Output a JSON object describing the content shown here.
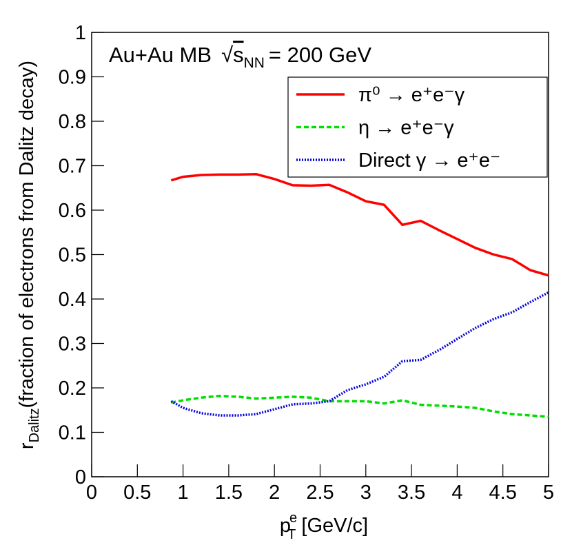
{
  "chart_data": {
    "type": "line",
    "annotation": [
      "Au+Au  MB",
      "s",
      "NN",
      "= 200 GeV"
    ],
    "ylabel": [
      "r",
      "Dalitz",
      "(fraction of electrons from Dalitz decay)"
    ],
    "xlabel": [
      "p",
      "e",
      "T",
      " [GeV/c]"
    ],
    "x": [
      0.87,
      1.0,
      1.2,
      1.4,
      1.6,
      1.8,
      2.0,
      2.2,
      2.4,
      2.6,
      2.8,
      3.0,
      3.2,
      3.4,
      3.6,
      3.8,
      4.0,
      4.2,
      4.4,
      4.6,
      4.8,
      5.0
    ],
    "series": [
      {
        "name": "π⁰ → e⁺e⁻γ",
        "color": "#ff0000",
        "dash": "solid",
        "values": [
          0.667,
          0.675,
          0.679,
          0.68,
          0.68,
          0.681,
          0.67,
          0.656,
          0.655,
          0.657,
          0.64,
          0.62,
          0.612,
          0.567,
          0.576,
          0.555,
          0.535,
          0.515,
          0.5,
          0.49,
          0.465,
          0.453
        ]
      },
      {
        "name": "η → e⁺e⁻γ",
        "color": "#00dd00",
        "dash": "dashed",
        "values": [
          0.167,
          0.172,
          0.178,
          0.182,
          0.18,
          0.176,
          0.178,
          0.18,
          0.178,
          0.17,
          0.17,
          0.17,
          0.165,
          0.172,
          0.162,
          0.16,
          0.158,
          0.155,
          0.147,
          0.141,
          0.138,
          0.135
        ]
      },
      {
        "name": "Direct γ → e⁺e⁻",
        "color": "#0000dd",
        "dash": "dotted",
        "values": [
          0.17,
          0.155,
          0.143,
          0.138,
          0.138,
          0.141,
          0.152,
          0.163,
          0.165,
          0.17,
          0.195,
          0.208,
          0.225,
          0.26,
          0.263,
          0.285,
          0.31,
          0.335,
          0.355,
          0.37,
          0.393,
          0.415
        ]
      }
    ],
    "xlim": [
      0,
      5
    ],
    "xticks": [
      0,
      0.5,
      1,
      1.5,
      2,
      2.5,
      3,
      3.5,
      4,
      4.5,
      5
    ],
    "ylim": [
      0,
      1
    ],
    "yticks": [
      0,
      0.1,
      0.2,
      0.3,
      0.4,
      0.5,
      0.6,
      0.7,
      0.8,
      0.9,
      1
    ],
    "legend": "top-right"
  }
}
